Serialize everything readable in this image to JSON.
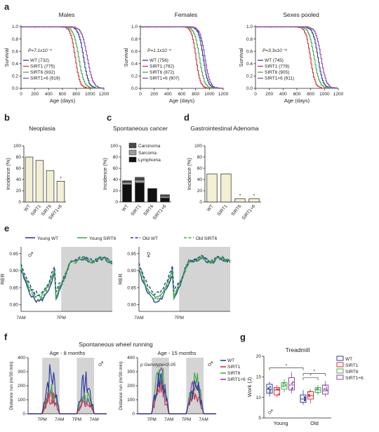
{
  "colors": {
    "wt": "#2c3e9c",
    "sirt1": "#d6303a",
    "sirt6": "#3fae49",
    "sirt16": "#8e44ad",
    "bar": "#f3efd3",
    "grey": "#d4d4d4"
  },
  "panel_a": {
    "letter": "a",
    "xlabel": "Age (days)",
    "ylabel": "Survival",
    "xticks": [
      "0",
      "200",
      "400",
      "600",
      "800",
      "1000",
      "1200"
    ],
    "yticks": [
      "0.0",
      "0.2",
      "0.4",
      "0.6",
      "0.8",
      "1.0"
    ],
    "plots": [
      {
        "title": "Males",
        "pvalue": "P=7.1x10⁻⁴",
        "legend": [
          "WT (732)",
          "SIRT1 (775)",
          "SIRT6 (932)",
          "SIRT1+6 (919)"
        ],
        "medians": [
          900,
          780,
          830,
          955
        ],
        "spread": [
          80,
          75,
          85,
          90
        ]
      },
      {
        "title": "Females",
        "pvalue": "P=1.1x10⁻⁴",
        "legend": [
          "WT (756)",
          "SIRT1 (792)",
          "SIRT6 (872)",
          "SIRT1+6 (907)"
        ],
        "medians": [
          905,
          800,
          850,
          930
        ],
        "spread": [
          75,
          70,
          80,
          80
        ]
      },
      {
        "title": "Sexes pooled",
        "pvalue": "P=3.3x10⁻¹¹",
        "legend": [
          "WT (745)",
          "SIRT1 (778)",
          "SIRT6 (905)",
          "SIRT1+6 (911)"
        ],
        "medians": [
          900,
          790,
          845,
          945
        ],
        "spread": [
          80,
          75,
          85,
          85
        ]
      }
    ]
  },
  "panel_b": {
    "letter": "b",
    "title": "Neoplasia",
    "ylabel": "Incidence (%)",
    "yticks": [
      "0",
      "20",
      "40",
      "60",
      "80",
      "100"
    ],
    "categories": [
      "WT",
      "SIRT1",
      "SIRT6",
      "SIRT1+6"
    ],
    "values": [
      80,
      74,
      56,
      37
    ],
    "star": "*"
  },
  "panel_c": {
    "letter": "c",
    "title": "Spontaneous cancer",
    "ylabel": "Incidence (%)",
    "yticks": [
      "0",
      "20",
      "40",
      "60",
      "80",
      "100"
    ],
    "categories": [
      "WT",
      "SIRT1",
      "SIRT6",
      "SIRT1+6"
    ],
    "legend": [
      "Carcinoma",
      "Sarcoma",
      "Lymphoma"
    ],
    "lymphoma": [
      31,
      34,
      24,
      7
    ],
    "sarcoma": [
      4,
      5,
      0,
      3
    ],
    "carcinoma": [
      3,
      5,
      0,
      3
    ]
  },
  "panel_d": {
    "letter": "d",
    "title": "Gastrointestinal Adenoma",
    "ylabel": "Incidence (%)",
    "yticks": [
      "0",
      "20",
      "40",
      "60",
      "80",
      "100"
    ],
    "categories": [
      "WT",
      "SIRT1",
      "SIRT6",
      "SIRT1+6"
    ],
    "values": [
      50,
      50,
      6,
      6
    ],
    "stars": [
      "",
      "",
      "*",
      "*"
    ]
  },
  "panel_e": {
    "letter": "e",
    "legend": [
      "Young WT",
      "Young SIRT6",
      "Old WT",
      "Old SIRT6"
    ],
    "ylabel": "RER",
    "yticks": [
      "0.80",
      "0.85",
      "0.90",
      "0.95"
    ],
    "xticks": [
      "7AM",
      "7PM"
    ],
    "male_symbol": "♂",
    "female_symbol": "♀"
  },
  "panel_f": {
    "letter": "f",
    "title": "Spontaneous wheel running",
    "ylabel": "Distance run (m/30 min)",
    "yticks": [
      "0",
      "100",
      "200",
      "300",
      "400"
    ],
    "xticks": [
      "7PM",
      "7AM",
      "7PM",
      "7AM"
    ],
    "left_title": "Age - 8 months",
    "right_title": "Age - 15 months",
    "pvalue": "p Genotype<0.05",
    "legend": [
      "WT",
      "SIRT1",
      "SIRT6",
      "SIRT1+6"
    ],
    "male_symbol": "♂"
  },
  "panel_g": {
    "letter": "g",
    "title": "Treadmill",
    "ylabel": "Work (J)",
    "yticks": [
      "5",
      "10",
      "15",
      "20"
    ],
    "groups": [
      "Young",
      "Old"
    ],
    "legend": [
      "WT",
      "SIRT1",
      "SIRT6",
      "SIRT1+6"
    ],
    "star": "*",
    "male_symbol": "♂",
    "boxes": [
      {
        "group": 0,
        "q1": 11.0,
        "med": 12.0,
        "q3": 13.2,
        "min": 10.2,
        "max": 13.8
      },
      {
        "group": 0,
        "q1": 10.6,
        "med": 11.8,
        "q3": 12.4,
        "min": 10.0,
        "max": 13.0
      },
      {
        "group": 0,
        "q1": 12.0,
        "med": 12.8,
        "q3": 13.6,
        "min": 11.2,
        "max": 14.4
      },
      {
        "group": 0,
        "q1": 11.8,
        "med": 13.0,
        "q3": 14.8,
        "min": 11.0,
        "max": 16.2
      },
      {
        "group": 1,
        "q1": 8.8,
        "med": 9.6,
        "q3": 10.6,
        "min": 8.2,
        "max": 11.8
      },
      {
        "group": 1,
        "q1": 9.6,
        "med": 10.4,
        "q3": 11.4,
        "min": 8.6,
        "max": 12.0
      },
      {
        "group": 1,
        "q1": 11.2,
        "med": 11.8,
        "q3": 12.4,
        "min": 10.6,
        "max": 13.0
      },
      {
        "group": 1,
        "q1": 10.8,
        "med": 11.6,
        "q3": 13.0,
        "min": 10.2,
        "max": 14.0
      }
    ]
  }
}
